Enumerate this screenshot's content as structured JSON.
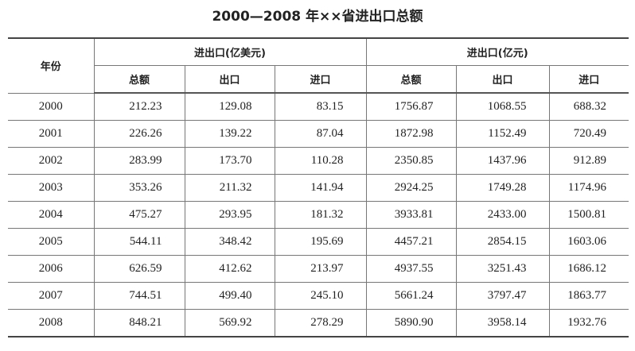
{
  "header": {
    "title": "2000—2008 年××省进出口总额"
  },
  "table": {
    "corner": "年份",
    "groups": [
      "进出口(亿美元)",
      "进出口(亿元)"
    ],
    "subheaders": [
      "总额",
      "出口",
      "进口",
      "总额",
      "出口",
      "进口"
    ],
    "rows": [
      [
        "2000",
        "212.23",
        "129.08",
        "83.15",
        "1756.87",
        "1068.55",
        "688.32"
      ],
      [
        "2001",
        "226.26",
        "139.22",
        "87.04",
        "1872.98",
        "1152.49",
        "720.49"
      ],
      [
        "2002",
        "283.99",
        "173.70",
        "110.28",
        "2350.85",
        "1437.96",
        "912.89"
      ],
      [
        "2003",
        "353.26",
        "211.32",
        "141.94",
        "2924.25",
        "1749.28",
        "1174.96"
      ],
      [
        "2004",
        "475.27",
        "293.95",
        "181.32",
        "3933.81",
        "2433.00",
        "1500.81"
      ],
      [
        "2005",
        "544.11",
        "348.42",
        "195.69",
        "4457.21",
        "2854.15",
        "1603.06"
      ],
      [
        "2006",
        "626.59",
        "412.62",
        "213.97",
        "4937.55",
        "3251.43",
        "1686.12"
      ],
      [
        "2007",
        "744.51",
        "499.40",
        "245.10",
        "5661.24",
        "3797.47",
        "1863.77"
      ],
      [
        "2008",
        "848.21",
        "569.92",
        "278.29",
        "5890.90",
        "3958.14",
        "1932.76"
      ]
    ]
  }
}
